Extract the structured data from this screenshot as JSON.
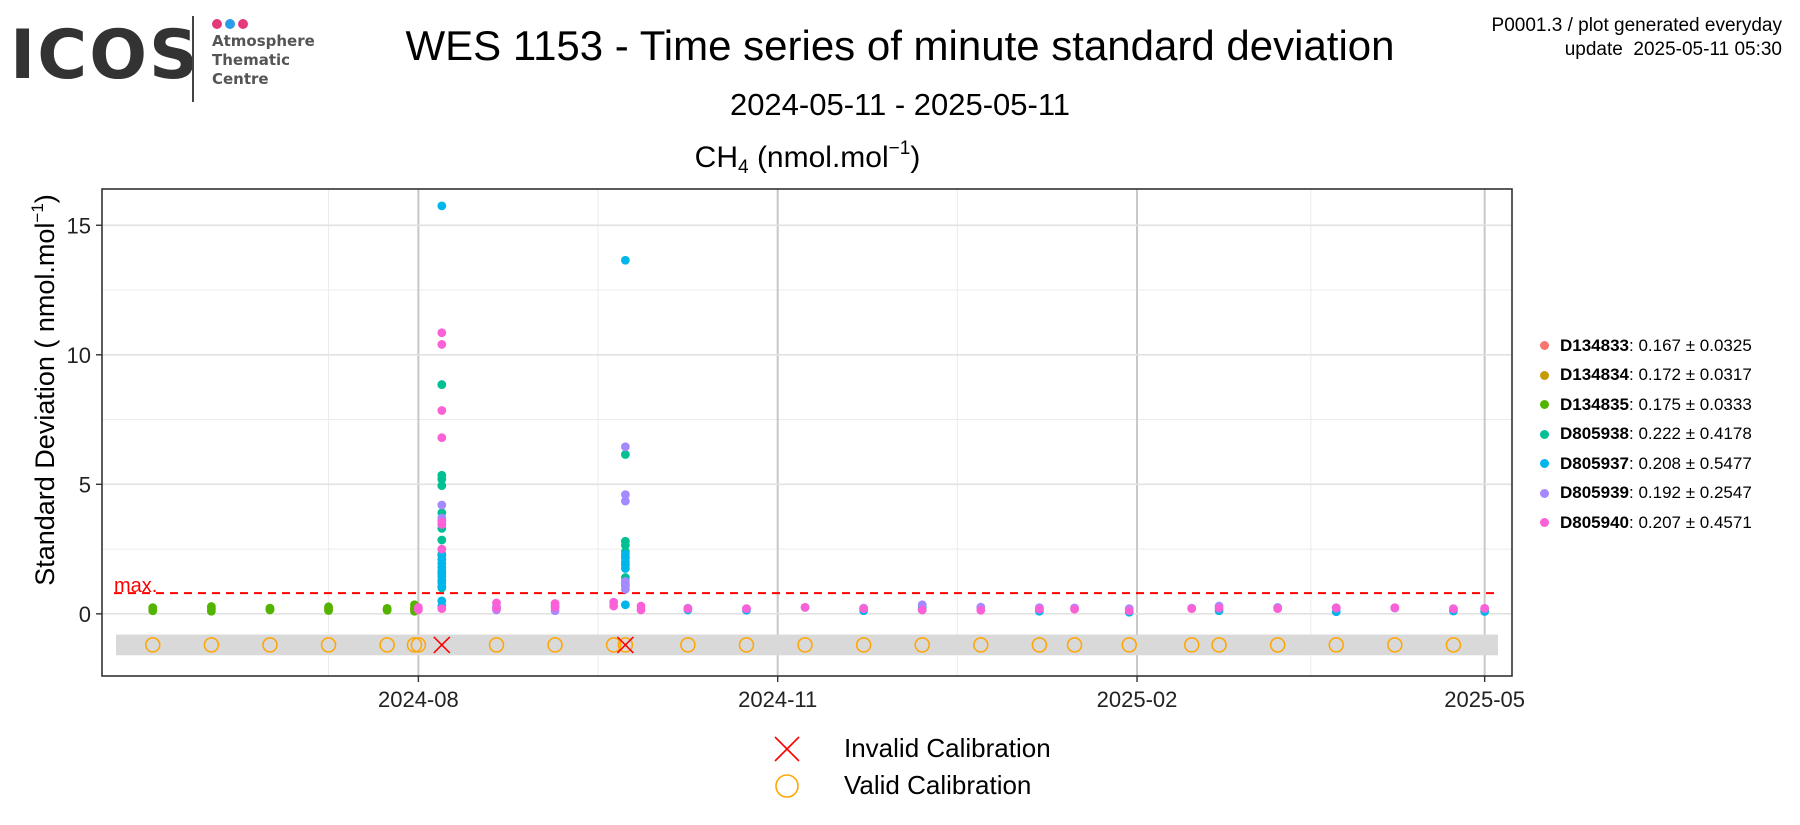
{
  "header": {
    "logo": {
      "wordmark": "ICOS",
      "line1": "Atmosphere",
      "line2": "Thematic",
      "line3": "Centre",
      "dot_colors": [
        "#e6397a",
        "#2b9ce6",
        "#e6397a"
      ]
    },
    "title": "WES 1153 - Time series of minute standard deviation",
    "date_range": "2024-05-11 - 2025-05-11",
    "subtitle_base": "CH",
    "subtitle_subscript": "4",
    "subtitle_unit": "(nmol.mol",
    "subtitle_superscript": "−1",
    "subtitle_close": ")",
    "corner_line1": "P0001.3 / plot generated everyday",
    "corner_line2": "update  2025-05-11 05:30"
  },
  "chart_data": {
    "type": "scatter",
    "ylabel_base": "Standard Deviation ( nmol.mol",
    "ylabel_sup": "−1",
    "ylabel_close": ")",
    "x_range": [
      "2024-05-12",
      "2025-05-08"
    ],
    "y_range": [
      -2.4,
      16.4
    ],
    "x_ticks": [
      "2024-08-01",
      "2024-11-01",
      "2025-02-01",
      "2025-05-01"
    ],
    "x_tick_labels": [
      "2024-08",
      "2024-11",
      "2025-02",
      "2025-05"
    ],
    "y_ticks": [
      0,
      5,
      10,
      15
    ],
    "y_tick_labels": [
      "0",
      "5",
      "10",
      "15"
    ],
    "grid": true,
    "max_line": {
      "value": 0.8,
      "label": "max.",
      "color": "#ff0000"
    },
    "calibration_band": [
      -1.6,
      -0.8
    ],
    "calibration_marker_y": -1.2,
    "valid_calibration_dates": [
      "2024-05-25",
      "2024-06-09",
      "2024-06-24",
      "2024-07-09",
      "2024-07-24",
      "2024-07-31",
      "2024-08-01",
      "2024-08-21",
      "2024-09-05",
      "2024-09-20",
      "2024-09-23",
      "2024-10-09",
      "2024-10-24",
      "2024-11-08",
      "2024-11-23",
      "2024-12-08",
      "2024-12-23",
      "2025-01-07",
      "2025-01-16",
      "2025-01-30",
      "2025-02-15",
      "2025-02-22",
      "2025-03-09",
      "2025-03-24",
      "2025-04-08",
      "2025-04-23"
    ],
    "invalid_calibration_dates": [
      "2024-08-07",
      "2024-09-23"
    ],
    "series": [
      {
        "name": "D134833",
        "stats": ": 0.167 ± 0.0325",
        "color": "#f8766d",
        "x": [
          "2024-05-25",
          "2024-06-09",
          "2024-06-24",
          "2024-07-09",
          "2024-07-24",
          "2024-07-31"
        ],
        "y": [
          0.16,
          0.17,
          0.16,
          0.17,
          0.16,
          0.17
        ]
      },
      {
        "name": "D134834",
        "stats": ": 0.172 ± 0.0317",
        "color": "#c49a00",
        "x": [
          "2024-05-25",
          "2024-06-09",
          "2024-06-24",
          "2024-07-09",
          "2024-07-24",
          "2024-07-31"
        ],
        "y": [
          0.19,
          0.21,
          0.17,
          0.22,
          0.18,
          0.25
        ]
      },
      {
        "name": "D134835",
        "stats": ": 0.175 ± 0.0333",
        "color": "#53b400",
        "x": [
          "2024-05-25",
          "2024-05-25",
          "2024-06-09",
          "2024-06-09",
          "2024-06-24",
          "2024-06-24",
          "2024-07-09",
          "2024-07-09",
          "2024-07-24",
          "2024-07-24",
          "2024-07-31",
          "2024-07-31",
          "2024-07-31"
        ],
        "y": [
          0.12,
          0.24,
          0.1,
          0.28,
          0.15,
          0.22,
          0.13,
          0.27,
          0.14,
          0.21,
          0.1,
          0.2,
          0.35
        ]
      },
      {
        "name": "D805938",
        "stats": ": 0.222 ± 0.4178",
        "color": "#00c094",
        "x": [
          "2024-08-07",
          "2024-08-07",
          "2024-08-07",
          "2024-08-07",
          "2024-08-07",
          "2024-08-07",
          "2024-08-07",
          "2024-08-07",
          "2024-08-07",
          "2024-09-23",
          "2024-09-23",
          "2024-09-23",
          "2024-09-23",
          "2024-09-23",
          "2024-09-23",
          "2024-09-23",
          "2024-12-08",
          "2024-12-08"
        ],
        "y": [
          8.85,
          5.35,
          5.2,
          4.95,
          3.9,
          3.3,
          2.85,
          2.3,
          1.0,
          6.15,
          2.8,
          2.65,
          2.4,
          2.2,
          1.4,
          1.1,
          0.3,
          0.15
        ]
      },
      {
        "name": "D805937",
        "stats": ": 0.208 ± 0.5477",
        "color": "#00b6eb",
        "x": [
          "2024-08-07",
          "2024-08-07",
          "2024-08-07",
          "2024-08-07",
          "2024-08-07",
          "2024-08-07",
          "2024-08-07",
          "2024-08-07",
          "2024-08-07",
          "2024-08-07",
          "2024-08-07",
          "2024-08-07",
          "2024-08-07",
          "2024-09-23",
          "2024-09-23",
          "2024-09-23",
          "2024-09-23",
          "2024-09-23",
          "2024-09-23",
          "2024-09-23",
          "2024-10-09",
          "2024-10-24",
          "2024-11-23",
          "2024-12-08",
          "2025-01-07",
          "2025-01-30",
          "2025-02-22",
          "2025-03-24",
          "2025-04-23",
          "2025-05-01"
        ],
        "y": [
          15.75,
          2.25,
          2.1,
          1.95,
          1.8,
          1.65,
          1.55,
          1.45,
          1.3,
          1.2,
          1.05,
          0.5,
          0.3,
          13.65,
          2.3,
          2.15,
          2.0,
          1.9,
          1.75,
          0.35,
          0.15,
          0.14,
          0.12,
          0.18,
          0.1,
          0.06,
          0.12,
          0.08,
          0.11,
          0.09
        ]
      },
      {
        "name": "D805939",
        "stats": ": 0.192 ± 0.2547",
        "color": "#a58aff",
        "x": [
          "2024-08-07",
          "2024-08-07",
          "2024-08-07",
          "2024-08-21",
          "2024-08-21",
          "2024-09-05",
          "2024-09-05",
          "2024-09-23",
          "2024-09-23",
          "2024-09-23",
          "2024-09-23",
          "2024-09-23",
          "2024-09-23",
          "2024-10-09",
          "2024-10-24",
          "2024-11-08",
          "2024-11-23",
          "2024-12-08",
          "2024-12-23",
          "2025-01-07",
          "2025-01-16",
          "2025-01-30",
          "2025-02-15",
          "2025-02-22",
          "2025-03-09",
          "2025-03-24",
          "2025-04-08",
          "2025-04-23",
          "2025-05-01"
        ],
        "y": [
          4.2,
          3.7,
          3.6,
          0.28,
          0.15,
          0.3,
          0.12,
          6.45,
          4.6,
          4.35,
          1.25,
          1.15,
          0.95,
          0.22,
          0.2,
          0.25,
          0.22,
          0.35,
          0.26,
          0.24,
          0.23,
          0.2,
          0.22,
          0.3,
          0.25,
          0.24,
          0.22,
          0.2,
          0.21
        ]
      },
      {
        "name": "D805940",
        "stats": ": 0.207 ± 0.4571",
        "color": "#fb61d7",
        "x": [
          "2024-08-01",
          "2024-08-01",
          "2024-08-07",
          "2024-08-07",
          "2024-08-07",
          "2024-08-07",
          "2024-08-07",
          "2024-08-07",
          "2024-08-07",
          "2024-08-07",
          "2024-08-21",
          "2024-08-21",
          "2024-09-05",
          "2024-09-05",
          "2024-09-20",
          "2024-09-20",
          "2024-09-27",
          "2024-09-27",
          "2024-10-09",
          "2024-10-24",
          "2024-11-08",
          "2024-11-23",
          "2024-12-08",
          "2024-12-23",
          "2025-01-07",
          "2025-01-16",
          "2025-01-30",
          "2025-02-15",
          "2025-02-22",
          "2025-03-09",
          "2025-03-24",
          "2025-04-08",
          "2025-04-23",
          "2025-05-01"
        ],
        "y": [
          0.15,
          0.25,
          10.85,
          10.4,
          7.85,
          6.8,
          3.55,
          3.45,
          2.5,
          0.2,
          0.42,
          0.22,
          0.4,
          0.25,
          0.45,
          0.3,
          0.3,
          0.15,
          0.2,
          0.2,
          0.25,
          0.2,
          0.15,
          0.14,
          0.18,
          0.18,
          0.12,
          0.2,
          0.22,
          0.2,
          0.22,
          0.24,
          0.19,
          0.21
        ]
      }
    ]
  },
  "calibration_legend": {
    "invalid_label": "Invalid Calibration",
    "valid_label": "Valid Calibration",
    "invalid_color": "#ff0000",
    "valid_color": "#ffa500"
  }
}
